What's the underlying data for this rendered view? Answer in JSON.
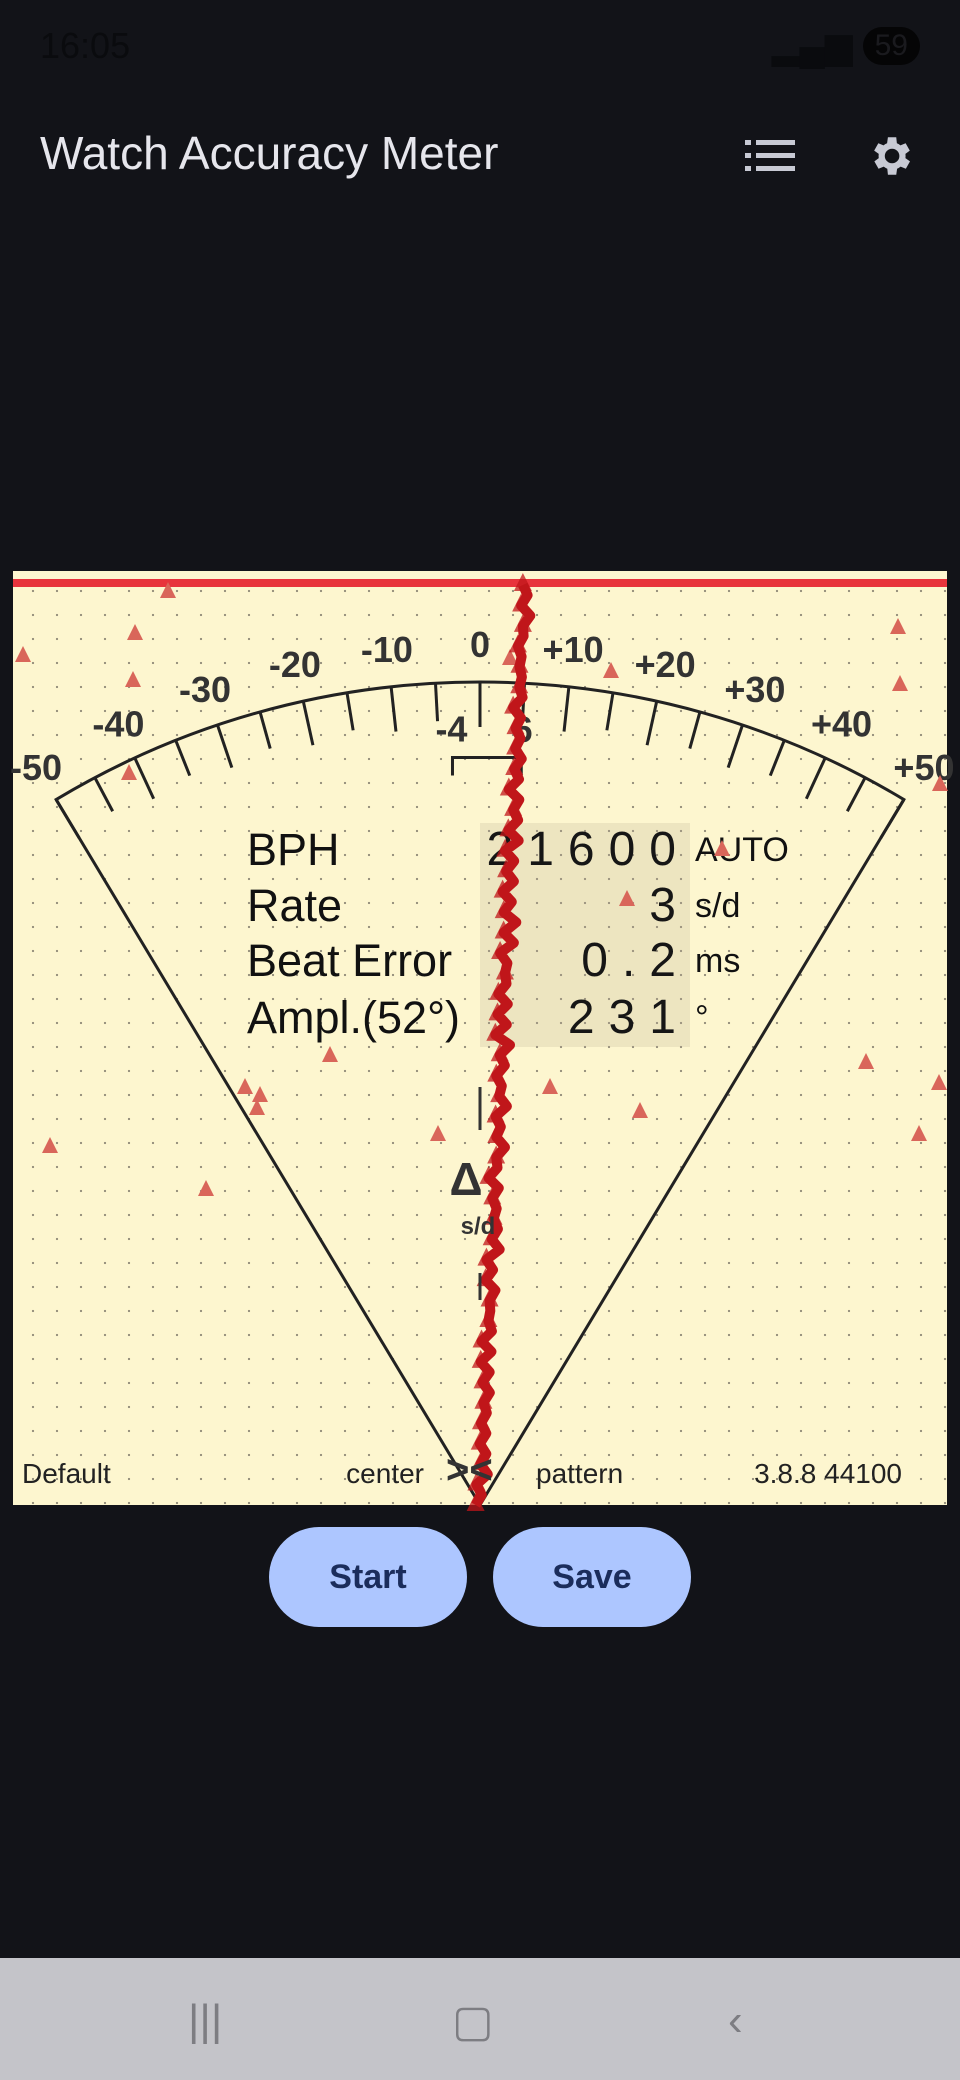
{
  "status_bar": {
    "time": "16:05",
    "battery": "59"
  },
  "app_bar": {
    "title": "Watch Accuracy Meter",
    "list_icon": "list-icon",
    "settings_icon": "gear-icon"
  },
  "meter": {
    "scale_labels": [
      "-50",
      "-40",
      "-30",
      "-20",
      "-10",
      "0",
      "+10",
      "+20",
      "+30",
      "+40",
      "+50"
    ],
    "range_low": "-4",
    "range_high": "6",
    "rows": [
      {
        "label": "BPH",
        "value": "21600",
        "unit": "AUTO"
      },
      {
        "label": "Rate",
        "value": "3",
        "unit": "s/d"
      },
      {
        "label": "Beat Error",
        "value": "0.2",
        "unit": "ms"
      },
      {
        "label": "Ampl.(52°)",
        "value": "231",
        "unit": "°"
      }
    ],
    "delta_symbol": "Δ",
    "delta_unit": "s/d",
    "footer": {
      "profile": "Default",
      "center": "center",
      "pattern": "pattern",
      "version": "3.8.8 44100"
    },
    "colors": {
      "trace": "#c0161a",
      "marker": "#d9665a",
      "top_line": "#e8343c",
      "panel": "#fdf6cf"
    }
  },
  "buttons": {
    "start": "Start",
    "save": "Save"
  }
}
